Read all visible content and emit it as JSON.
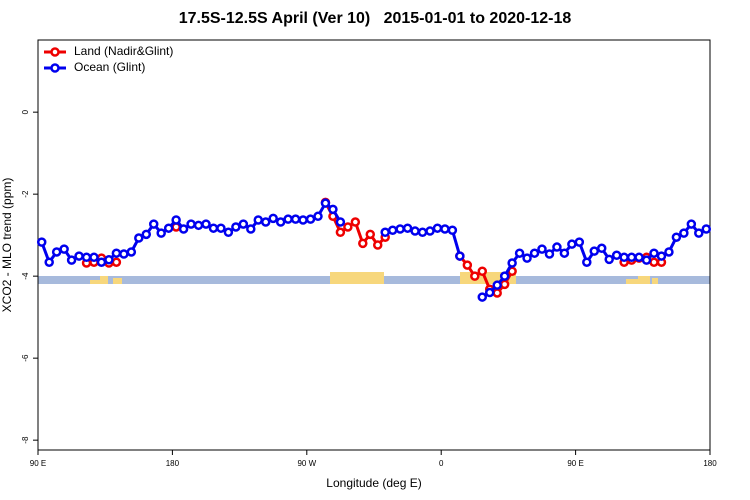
{
  "chart_data": {
    "type": "line",
    "title": "17.5S-12.5S April (Ver 10)   2015-01-01 to 2020-12-18",
    "xlabel": "Longitude (deg E)",
    "ylabel": "XCO2 - MLO trend (ppm)",
    "xlim": [
      90,
      540
    ],
    "ylim": [
      -8.24,
      1.76
    ],
    "xticks": [
      {
        "value": 90,
        "label": "90 E"
      },
      180,
      {
        "value": 270,
        "label": "90 W"
      },
      {
        "value": 360,
        "label": "0"
      },
      {
        "value": 450,
        "label": "90 E"
      },
      {
        "value": 540,
        "label": "180"
      }
    ],
    "yticks": [
      0,
      -2,
      -4,
      -6,
      -8
    ],
    "legend": "upper left",
    "x": [
      92.5,
      97.5,
      102.5,
      107.5,
      112.5,
      117.5,
      122.5,
      127.5,
      132.5,
      137.5,
      142.5,
      147.5,
      152.5,
      157.5,
      162.5,
      167.5,
      172.5,
      177.5,
      182.5,
      187.5,
      192.5,
      197.5,
      202.5,
      207.5,
      212.5,
      217.5,
      222.5,
      227.5,
      232.5,
      237.5,
      242.5,
      247.5,
      252.5,
      257.5,
      262.5,
      267.5,
      272.5,
      277.5,
      282.5,
      287.5,
      292.5,
      297.5,
      302.5,
      307.5,
      312.5,
      317.5,
      322.5,
      327.5,
      332.5,
      337.5,
      342.5,
      347.5,
      352.5,
      357.5,
      362.5,
      367.5,
      372.5,
      377.5,
      382.5,
      387.5,
      392.5,
      397.5,
      402.5,
      407.5,
      412.5,
      417.5,
      422.5,
      427.5,
      432.5,
      437.5,
      442.5,
      447.5,
      452.5,
      457.5,
      462.5,
      467.5,
      472.5,
      477.5,
      482.5,
      487.5,
      492.5,
      497.5,
      502.5,
      507.5,
      512.5,
      517.5,
      522.5,
      527.5,
      532.5,
      537.5
    ],
    "series": [
      {
        "name": "Land (Nadir&Glint)",
        "color": "#ee0000",
        "values": [
          null,
          null,
          null,
          null,
          null,
          null,
          -3.68,
          -3.66,
          -3.56,
          -3.68,
          -3.66,
          null,
          null,
          null,
          null,
          null,
          null,
          null,
          -2.8,
          null,
          null,
          null,
          null,
          null,
          null,
          null,
          null,
          null,
          null,
          null,
          null,
          null,
          null,
          null,
          null,
          null,
          null,
          null,
          -2.2,
          -2.54,
          -2.93,
          -2.8,
          -2.68,
          -3.2,
          -2.98,
          -3.24,
          -3.05,
          null,
          null,
          null,
          null,
          null,
          null,
          null,
          null,
          null,
          -3.51,
          -3.73,
          -4.0,
          -3.88,
          -4.32,
          -4.41,
          -4.2,
          -3.88,
          null,
          null,
          null,
          null,
          null,
          null,
          null,
          null,
          null,
          null,
          null,
          null,
          null,
          null,
          -3.66,
          -3.61,
          -3.56,
          -3.54,
          -3.66,
          -3.66,
          null,
          null,
          null,
          null,
          null,
          null
        ]
      },
      {
        "name": "Ocean (Glint)",
        "color": "#0000ee",
        "values": [
          -3.17,
          -3.66,
          -3.41,
          -3.34,
          -3.61,
          -3.51,
          -3.54,
          -3.54,
          -3.66,
          -3.6,
          -3.44,
          -3.46,
          -3.41,
          -3.07,
          -2.98,
          -2.73,
          -2.95,
          -2.83,
          -2.63,
          -2.85,
          -2.73,
          -2.76,
          -2.73,
          -2.83,
          -2.83,
          -2.93,
          -2.8,
          -2.73,
          -2.85,
          -2.63,
          -2.68,
          -2.59,
          -2.68,
          -2.61,
          -2.61,
          -2.63,
          -2.61,
          -2.54,
          -2.22,
          -2.37,
          -2.68,
          null,
          null,
          null,
          null,
          null,
          -2.93,
          -2.88,
          -2.85,
          -2.83,
          -2.9,
          -2.93,
          -2.9,
          -2.83,
          -2.85,
          -2.88,
          -3.51,
          null,
          null,
          -4.51,
          -4.4,
          -4.22,
          -4.0,
          -3.68,
          -3.44,
          -3.56,
          -3.44,
          -3.34,
          -3.46,
          -3.29,
          -3.44,
          -3.22,
          -3.17,
          -3.66,
          -3.39,
          -3.32,
          -3.59,
          -3.49,
          -3.54,
          -3.54,
          -3.54,
          -3.61,
          -3.44,
          -3.51,
          -3.41,
          -3.05,
          -2.95,
          -2.73,
          -2.95,
          -2.85
        ]
      }
    ]
  }
}
